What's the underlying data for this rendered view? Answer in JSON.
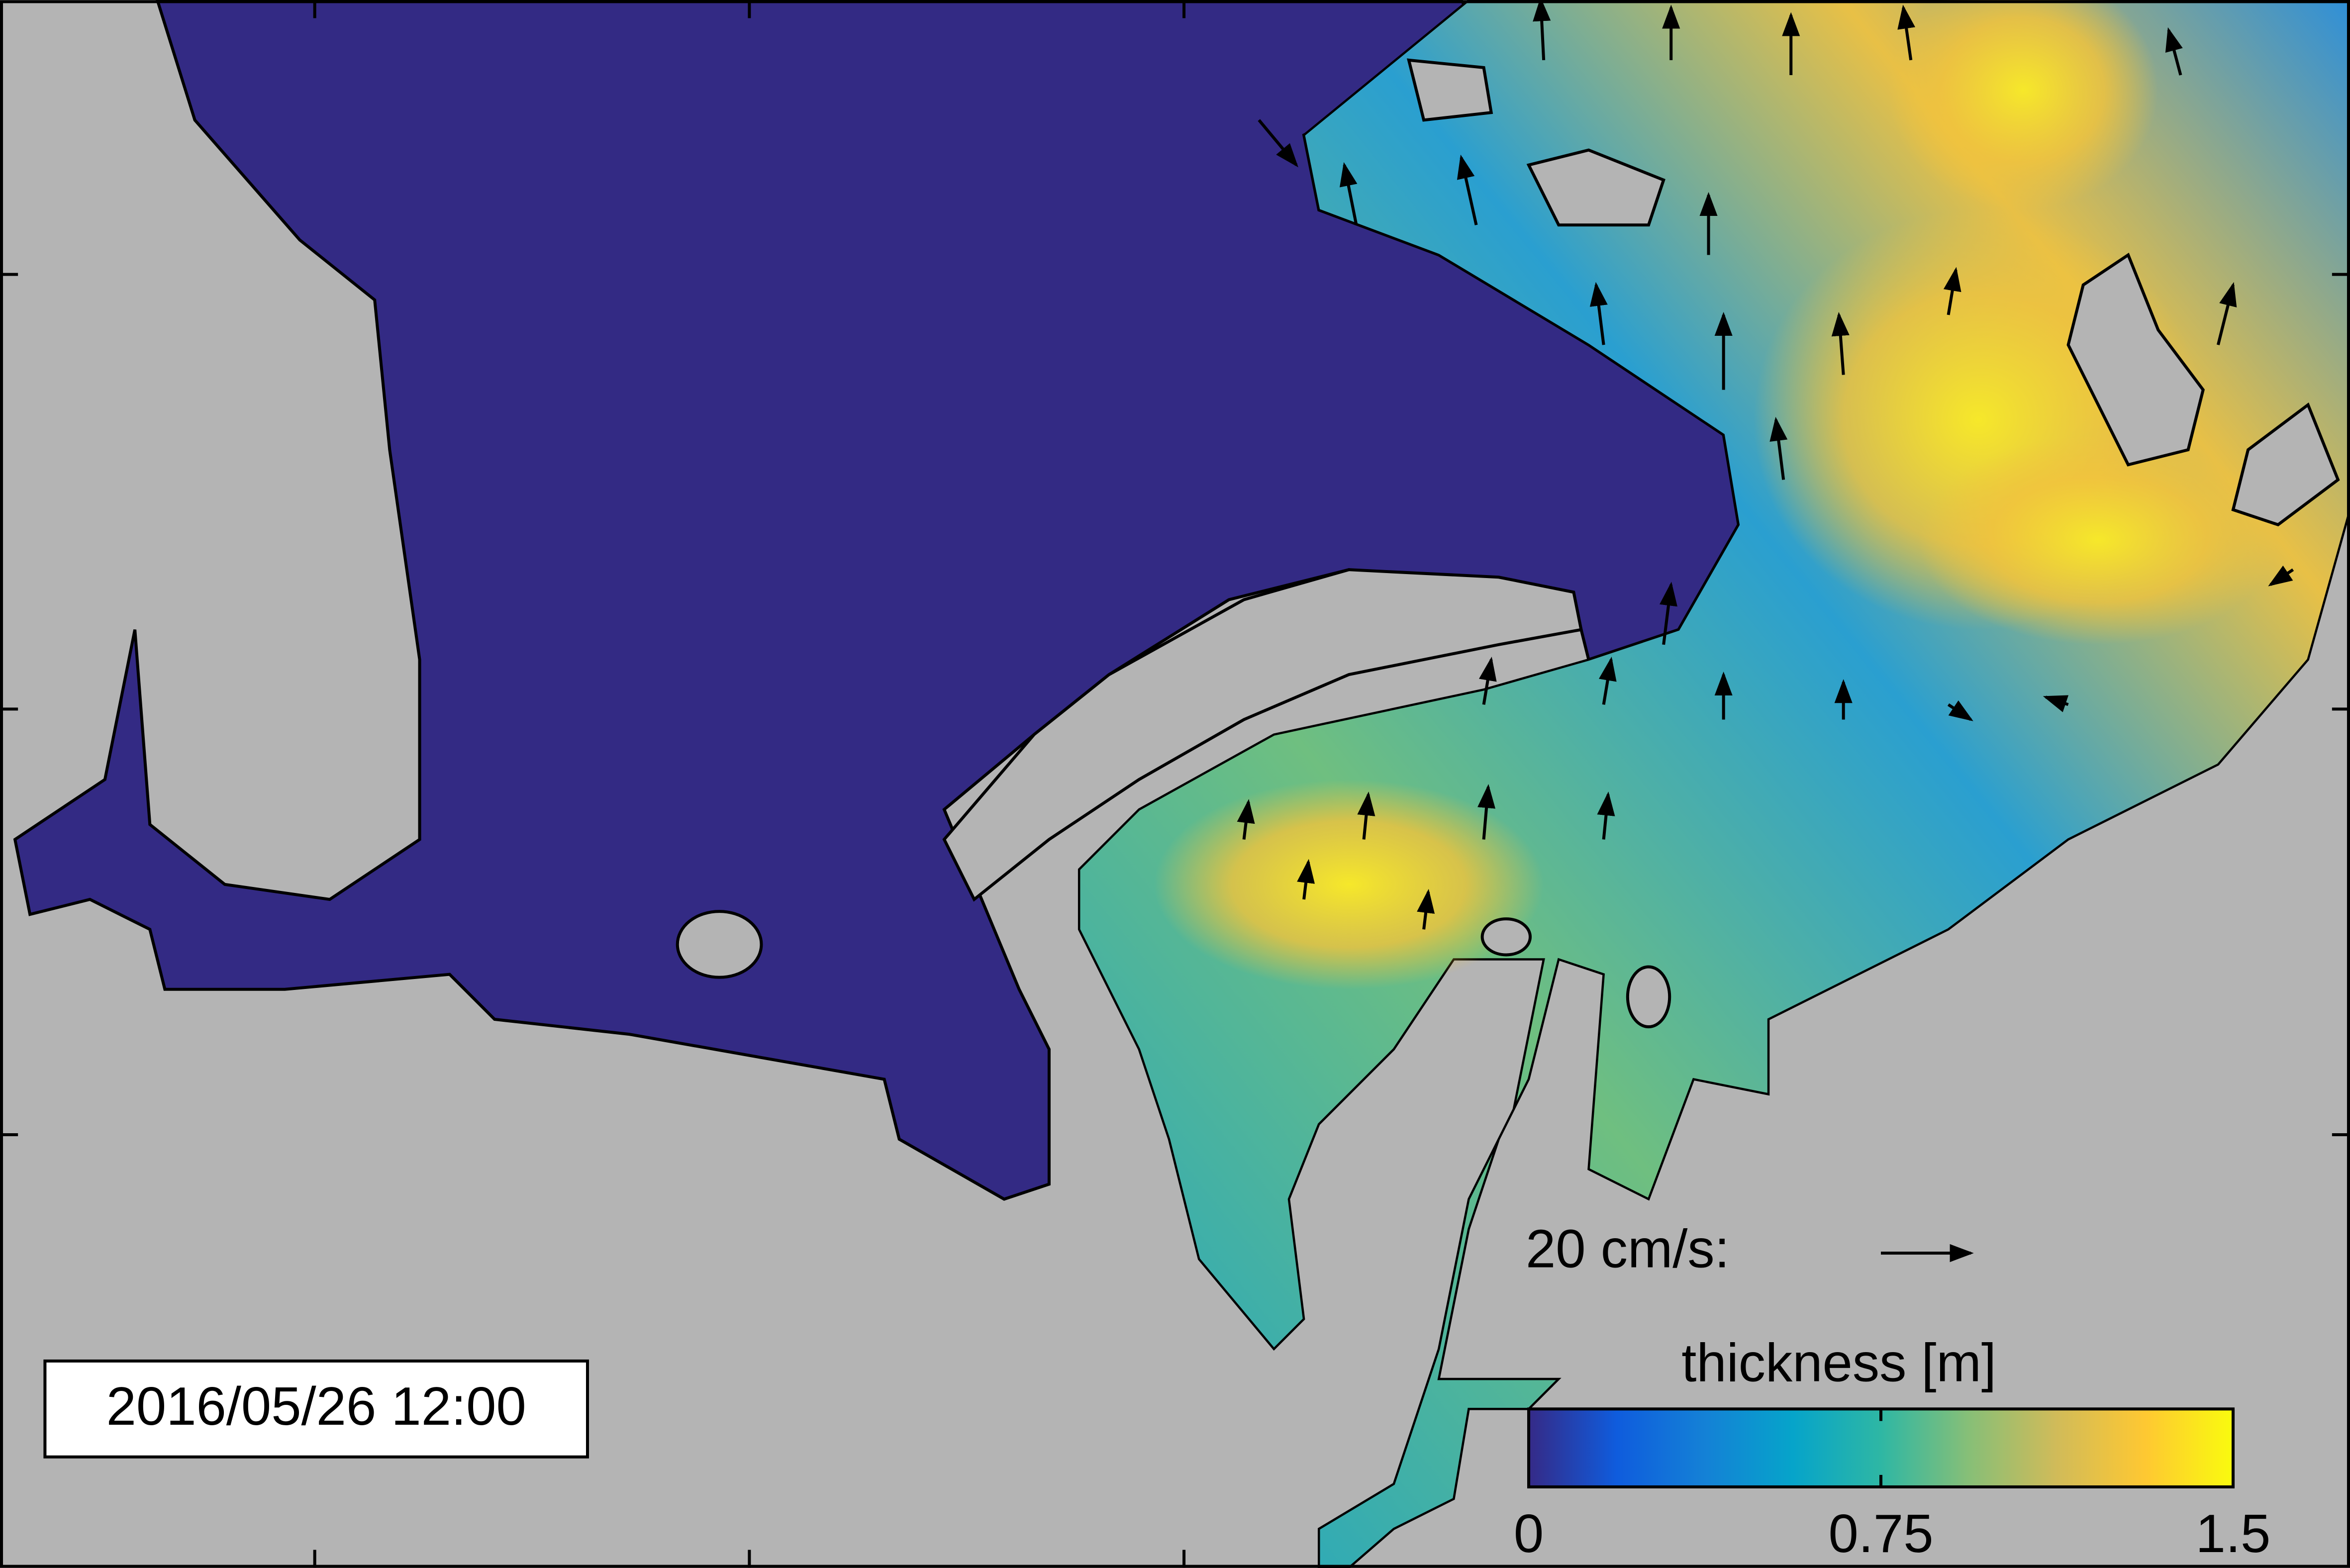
{
  "timestamp": "2016/05/26 12:00",
  "velocity_scale": {
    "label": "20 cm/s:"
  },
  "colorbar": {
    "label": "thickness [m]",
    "lim": [
      0,
      1.5
    ],
    "ticks": [
      0,
      0.75,
      1.5
    ],
    "colors": [
      "#352a87",
      "#0f5cdd",
      "#1481d6",
      "#06a4ca",
      "#2eb7a4",
      "#87bf77",
      "#d1bb59",
      "#fec832",
      "#f9fb0e"
    ]
  }
}
